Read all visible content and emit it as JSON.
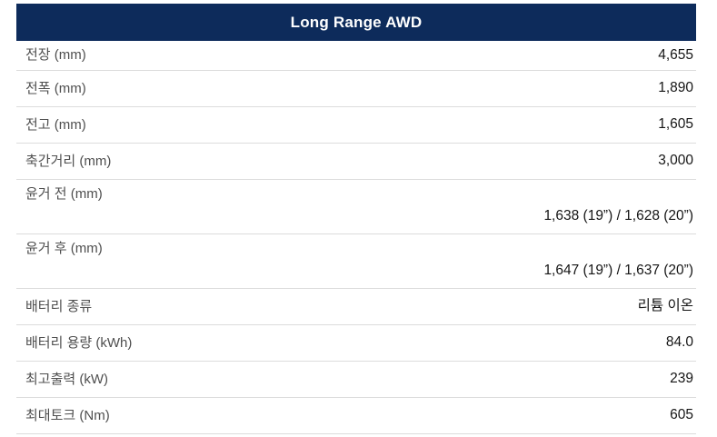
{
  "header": {
    "title": "Long Range AWD"
  },
  "table": {
    "rows": [
      {
        "label": "전장 (mm)",
        "value": "4,655",
        "two_line": false
      },
      {
        "label": "전폭 (mm)",
        "value": "1,890",
        "two_line": false
      },
      {
        "label": "전고 (mm)",
        "value": "1,605",
        "two_line": false
      },
      {
        "label": "축간거리 (mm)",
        "value": "3,000",
        "two_line": false
      },
      {
        "label": "윤거 전 (mm)",
        "value": "1,638 (19”) / 1,628 (20”)",
        "two_line": true
      },
      {
        "label": "윤거 후 (mm)",
        "value": "1,647 (19”) / 1,637 (20”)",
        "two_line": true
      },
      {
        "label": "배터리 종류",
        "value": "리튬 이온",
        "two_line": false
      },
      {
        "label": "배터리 용량 (kWh)",
        "value": "84.0",
        "two_line": false
      },
      {
        "label": "최고출력 (kW)",
        "value": "239",
        "two_line": false
      },
      {
        "label": "최대토크 (Nm)",
        "value": "605",
        "two_line": false
      }
    ]
  },
  "colors": {
    "header_bg": "#0d2b5b",
    "header_text": "#ffffff",
    "label_text": "#4f4f4f",
    "value_text": "#161616",
    "divider": "#dcdcdc",
    "background": "#ffffff"
  }
}
